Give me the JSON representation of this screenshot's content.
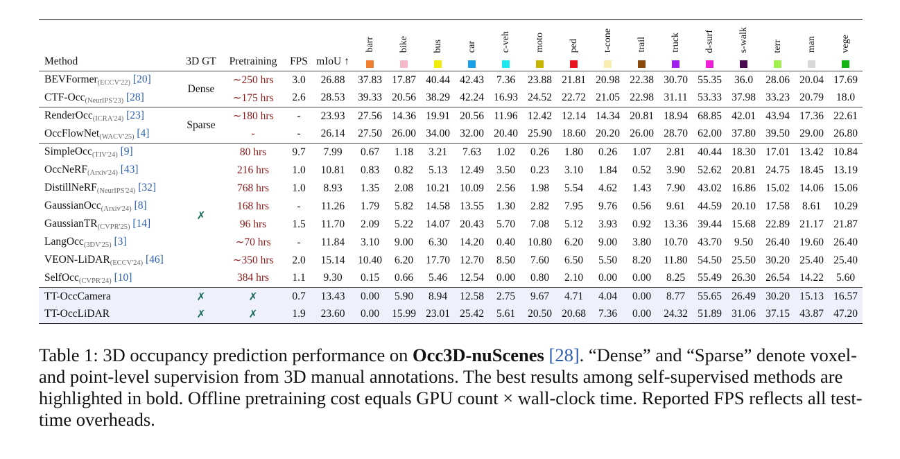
{
  "table": {
    "headers": {
      "method": "Method",
      "gt": "3D GT",
      "pretraining": "Pretraining",
      "fps": "FPS",
      "miou": "mIoU ↑"
    },
    "classes": [
      {
        "name": "barr",
        "color": "#f08030"
      },
      {
        "name": "bike",
        "color": "#f4b8c8"
      },
      {
        "name": "bus",
        "color": "#f2ec0c"
      },
      {
        "name": "car",
        "color": "#1aa0e6"
      },
      {
        "name": "c-veh",
        "color": "#19e8f0"
      },
      {
        "name": "moto",
        "color": "#c8b400"
      },
      {
        "name": "ped",
        "color": "#e8141e"
      },
      {
        "name": "t-cone",
        "color": "#f8ecb0"
      },
      {
        "name": "trail",
        "color": "#8b4a0c"
      },
      {
        "name": "truck",
        "color": "#a020f0"
      },
      {
        "name": "d-surf",
        "color": "#f020d8"
      },
      {
        "name": "s-walk",
        "color": "#4a0c50"
      },
      {
        "name": "terr",
        "color": "#a0f050"
      },
      {
        "name": "man",
        "color": "#d8d8d8"
      },
      {
        "name": "vege",
        "color": "#14b414"
      }
    ],
    "groups": [
      {
        "gt_label": "Dense",
        "rows": [
          {
            "name": "BEVFormer",
            "venue": "(ECCV'22)",
            "ref": "[20]",
            "pre": "∼250 hrs",
            "fps": "3.0",
            "miou": "26.88",
            "vals": [
              "37.83",
              "17.87",
              "40.44",
              "42.43",
              "7.36",
              "23.88",
              "21.81",
              "20.98",
              "22.38",
              "30.70",
              "55.35",
              "36.0",
              "28.06",
              "20.04",
              "17.69"
            ]
          },
          {
            "name": "CTF-Occ",
            "venue": "(NeurIPS'23)",
            "ref": "[28]",
            "pre": "∼175 hrs",
            "fps": "2.6",
            "miou": "28.53",
            "vals": [
              "39.33",
              "20.56",
              "38.29",
              "42.24",
              "16.93",
              "24.52",
              "22.72",
              "21.05",
              "22.98",
              "31.11",
              "53.33",
              "37.98",
              "33.23",
              "20.79",
              "18.0"
            ]
          }
        ]
      },
      {
        "gt_label": "Sparse",
        "rows": [
          {
            "name": "RenderOcc",
            "venue": "(ICRA'24)",
            "ref": "[23]",
            "pre": "∼180 hrs",
            "fps": "-",
            "miou": "23.93",
            "vals": [
              "27.56",
              "14.36",
              "19.91",
              "20.56",
              "11.96",
              "12.42",
              "12.14",
              "14.34",
              "20.81",
              "18.94",
              "68.85",
              "42.01",
              "43.94",
              "17.36",
              "22.61"
            ]
          },
          {
            "name": "OccFlowNet",
            "venue": "(WACV'25)",
            "ref": "[4]",
            "pre": "-",
            "fps": "-",
            "miou": "26.14",
            "vals": [
              "27.50",
              "26.00",
              "34.00",
              "32.00",
              "20.40",
              "25.90",
              "18.60",
              "20.20",
              "26.00",
              "28.70",
              "62.00",
              "37.80",
              "39.50",
              "29.00",
              "26.80"
            ]
          }
        ]
      },
      {
        "gt_label": "✗",
        "rows": [
          {
            "name": "SimpleOcc",
            "venue": "(TIV'24)",
            "ref": "[9]",
            "pre": "80 hrs",
            "fps": "9.7",
            "miou": "7.99",
            "vals": [
              "0.67",
              "1.18",
              "3.21",
              "7.63",
              "1.02",
              "0.26",
              "1.80",
              "0.26",
              "1.07",
              "2.81",
              "40.44",
              "18.30",
              "17.01",
              "13.42",
              "10.84"
            ]
          },
          {
            "name": "OccNeRF",
            "venue": "(Arxiv'24)",
            "ref": "[43]",
            "pre": "216 hrs",
            "fps": "1.0",
            "miou": "10.81",
            "vals": [
              "0.83",
              "0.82",
              "5.13",
              "12.49",
              "3.50",
              "0.23",
              "3.10",
              "1.84",
              "0.52",
              "3.90",
              "52.62",
              "20.81",
              "24.75",
              "18.45",
              "13.19"
            ]
          },
          {
            "name": "DistillNeRF",
            "venue": "(NeurIPS'24)",
            "ref": "[32]",
            "pre": "768 hrs",
            "fps": "1.0",
            "miou": "8.93",
            "vals": [
              "1.35",
              "2.08",
              "10.21",
              "10.09",
              "2.56",
              "1.98",
              "5.54",
              "4.62",
              "1.43",
              "7.90",
              "43.02",
              "16.86",
              "15.02",
              "14.06",
              "15.06"
            ]
          },
          {
            "name": "GaussianOcc",
            "venue": "(Arxiv'24)",
            "ref": "[8]",
            "pre": "168 hrs",
            "fps": "-",
            "miou": "11.26",
            "vals": [
              "1.79",
              "5.82",
              "14.58",
              "13.55",
              "1.30",
              "2.82",
              "7.95",
              "9.76",
              "0.56",
              "9.61",
              "44.59",
              "20.10",
              "17.58",
              "8.61",
              "10.29"
            ],
            "bold": [
              7
            ]
          },
          {
            "name": "GaussianTR",
            "venue": "(CVPR'25)",
            "ref": "[14]",
            "pre": "96 hrs",
            "fps": "1.5",
            "miou": "11.70",
            "vals": [
              "2.09",
              "5.22",
              "14.07",
              "20.43",
              "5.70",
              "7.08",
              "5.12",
              "3.93",
              "0.92",
              "13.36",
              "39.44",
              "15.68",
              "22.89",
              "21.17",
              "21.87"
            ]
          },
          {
            "name": "LangOcc",
            "venue": "(3DV'25)",
            "ref": "[3]",
            "pre": "∼70 hrs",
            "fps": "-",
            "miou": "11.84",
            "vals": [
              "3.10",
              "9.00",
              "6.30",
              "14.20",
              "0.40",
              "10.80",
              "6.20",
              "9.00",
              "3.80",
              "10.70",
              "43.70",
              "9.50",
              "26.40",
              "19.60",
              "26.40"
            ]
          },
          {
            "name": "VEON-LiDAR",
            "venue": "(ECCV'24)",
            "ref": "[46]",
            "pre": "∼350 hrs",
            "fps": "2.0",
            "miou": "15.14",
            "vals": [
              "10.40",
              "6.20",
              "17.70",
              "12.70",
              "8.50",
              "7.60",
              "6.50",
              "5.50",
              "8.20",
              "11.80",
              "54.50",
              "25.50",
              "30.20",
              "25.40",
              "25.40"
            ],
            "bold": [
              0,
              4,
              8
            ]
          },
          {
            "name": "SelfOcc",
            "venue": "(CVPR'24)",
            "ref": "[10]",
            "pre": "384 hrs",
            "fps": "1.1",
            "miou": "9.30",
            "vals": [
              "0.15",
              "0.66",
              "5.46",
              "12.54",
              "0.00",
              "0.80",
              "2.10",
              "0.00",
              "0.00",
              "8.25",
              "55.49",
              "26.30",
              "26.54",
              "14.22",
              "5.60"
            ]
          }
        ]
      }
    ],
    "ours": [
      {
        "name": "TT-OccCamera",
        "gt": "✗",
        "pre": "✗",
        "fps": "0.7",
        "miou": "13.43",
        "vals": [
          "0.00",
          "5.90",
          "8.94",
          "12.58",
          "2.75",
          "9.67",
          "4.71",
          "4.04",
          "0.00",
          "8.77",
          "55.65",
          "26.49",
          "30.20",
          "15.13",
          "16.57"
        ],
        "bold": [
          10
        ]
      },
      {
        "name": "TT-OccLiDAR",
        "gt": "✗",
        "pre": "✗",
        "fps": "1.9",
        "miou": "23.60",
        "miou_bold": true,
        "vals": [
          "0.00",
          "15.99",
          "23.01",
          "25.42",
          "5.61",
          "20.50",
          "20.68",
          "7.36",
          "0.00",
          "24.32",
          "51.89",
          "31.06",
          "37.15",
          "43.87",
          "47.20"
        ],
        "bold": [
          1,
          2,
          3,
          5,
          6,
          9,
          11,
          12,
          13,
          14
        ]
      }
    ]
  },
  "caption": {
    "prefix": "Table 1: 3D occupancy prediction performance on ",
    "dataset": "Occ3D-nuScenes",
    "ref": "[28]",
    "rest": ". “Dense” and “Sparse” denote voxel- and point-level supervision from 3D manual annotations. The best results among self-supervised methods are highlighted in bold. Offline pretraining cost equals GPU count × wall-clock time. Reported FPS reflects all test-time overheads."
  }
}
